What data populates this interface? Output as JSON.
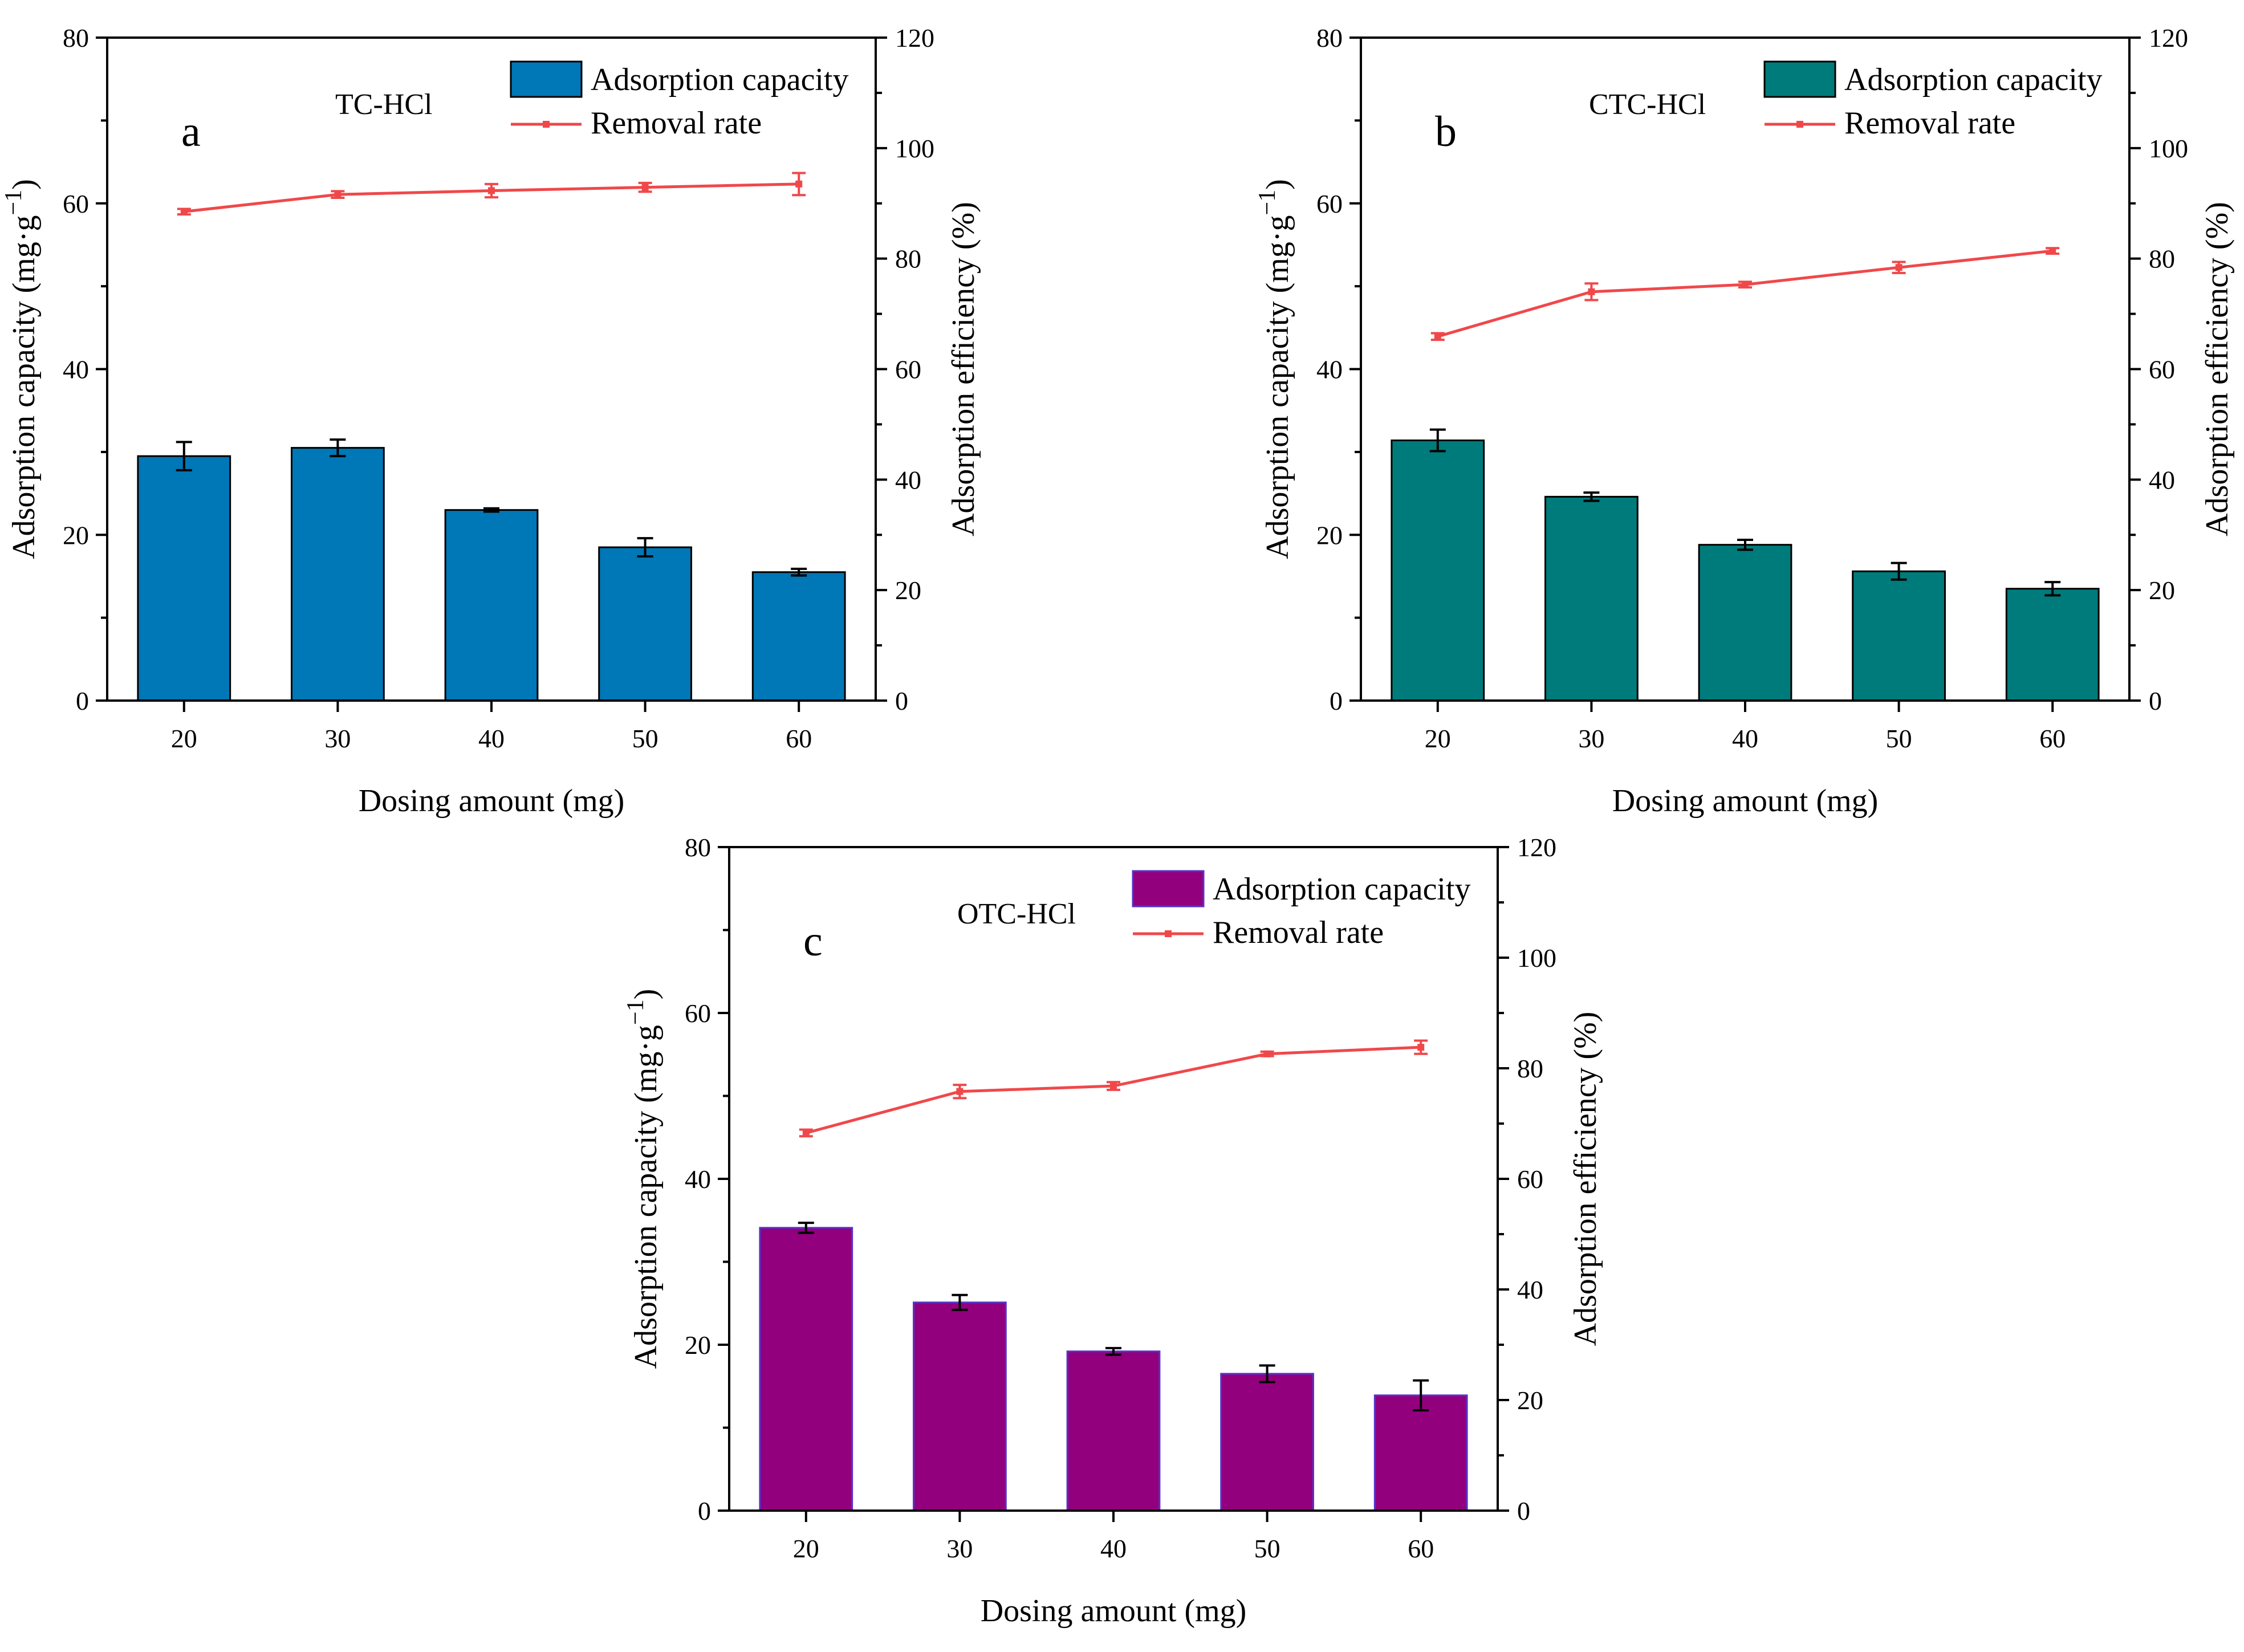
{
  "chart_data": [
    {
      "type": "bar",
      "panel": "a",
      "title": "TC-HCl",
      "categories": [
        "20",
        "30",
        "40",
        "50",
        "60"
      ],
      "xlabel": "Dosing amount (mg)",
      "ylabel": "Adsorption capacity (mg·g",
      "ylabel_sup": "−1",
      "ylabel_end": ")",
      "y2label": "Adsorption efficiency (%)",
      "ylim": [
        0,
        80
      ],
      "y2lim": [
        0,
        120
      ],
      "yticks": [
        "0",
        "20",
        "40",
        "60",
        "80"
      ],
      "y2ticks": [
        "0",
        "20",
        "40",
        "60",
        "80",
        "100",
        "120"
      ],
      "legend": {
        "bar": "Adsorption capacity",
        "line": "Removal rate"
      },
      "series": [
        {
          "name": "Adsorption capacity",
          "axis": "left",
          "kind": "bar",
          "values": [
            29.5,
            30.5,
            23.0,
            18.5,
            15.5
          ],
          "errors": [
            1.7,
            1.0,
            0.2,
            1.1,
            0.4
          ]
        },
        {
          "name": "Removal rate",
          "axis": "right",
          "kind": "line",
          "values": [
            88.5,
            91.6,
            92.3,
            92.9,
            93.5
          ],
          "errors": [
            0.5,
            0.6,
            1.2,
            0.8,
            2.0
          ]
        }
      ]
    },
    {
      "type": "bar",
      "panel": "b",
      "title": "CTC-HCl",
      "categories": [
        "20",
        "30",
        "40",
        "50",
        "60"
      ],
      "xlabel": "Dosing amount (mg)",
      "ylabel": "Adsorption capacity (mg·g",
      "ylabel_sup": "−1",
      "ylabel_end": ")",
      "y2label": "Adsorption efficiency (%)",
      "ylim": [
        0,
        80
      ],
      "y2lim": [
        0,
        120
      ],
      "yticks": [
        "0",
        "20",
        "40",
        "60",
        "80"
      ],
      "y2ticks": [
        "0",
        "20",
        "40",
        "60",
        "80",
        "100",
        "120"
      ],
      "legend": {
        "bar": "Adsorption capacity",
        "line": "Removal rate"
      },
      "series": [
        {
          "name": "Adsorption capacity",
          "axis": "left",
          "kind": "bar",
          "values": [
            31.4,
            24.6,
            18.8,
            15.6,
            13.5
          ],
          "errors": [
            1.3,
            0.5,
            0.6,
            1.0,
            0.8
          ]
        },
        {
          "name": "Removal rate",
          "axis": "right",
          "kind": "line",
          "values": [
            65.9,
            74.0,
            75.3,
            78.4,
            81.4
          ],
          "errors": [
            0.6,
            1.5,
            0.5,
            1.0,
            0.5
          ]
        }
      ]
    },
    {
      "type": "bar",
      "panel": "c",
      "title": "OTC-HCl",
      "categories": [
        "20",
        "30",
        "40",
        "50",
        "60"
      ],
      "xlabel": "Dosing amount (mg)",
      "ylabel": "Adsorption capacity (mg·g",
      "ylabel_sup": "−1",
      "ylabel_end": ")",
      "y2label": "Adsorption efficiency (%)",
      "ylim": [
        0,
        80
      ],
      "y2lim": [
        0,
        120
      ],
      "yticks": [
        "0",
        "20",
        "40",
        "60",
        "80"
      ],
      "y2ticks": [
        "0",
        "20",
        "40",
        "60",
        "80",
        "100",
        "120"
      ],
      "legend": {
        "bar": "Adsorption capacity",
        "line": "Removal rate"
      },
      "series": [
        {
          "name": "Adsorption capacity",
          "axis": "left",
          "kind": "bar",
          "values": [
            34.1,
            25.1,
            19.2,
            16.5,
            13.9
          ],
          "errors": [
            0.6,
            0.9,
            0.4,
            1.0,
            1.8
          ]
        },
        {
          "name": "Removal rate",
          "axis": "right",
          "kind": "line",
          "values": [
            68.3,
            75.8,
            76.8,
            82.6,
            83.8
          ],
          "errors": [
            0.6,
            1.2,
            0.7,
            0.4,
            1.2
          ]
        }
      ]
    }
  ],
  "colors": {
    "panel_a_bar": "#0077b6",
    "panel_b_bar": "#007b7b",
    "panel_c_bar": "#92007e",
    "panel_c_bar_edge": "#5533c8",
    "line": "#f0484a",
    "axis": "#000000"
  }
}
